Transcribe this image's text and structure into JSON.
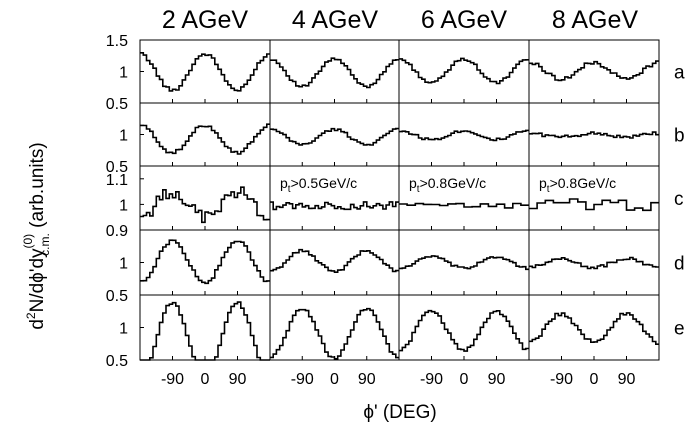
{
  "chart_data": {
    "type": "line",
    "layout": "grid of 5 rows x 4 columns, shared axes",
    "columns": [
      "2 AGeV",
      "4 AGeV",
      "6 AGeV",
      "8 AGeV"
    ],
    "rows": [
      "a",
      "b",
      "c",
      "d",
      "e"
    ],
    "xlabel": "ϕ' (DEG)",
    "ylabel": "d²N/dϕ'dy(0)c.m. (arb.units)",
    "xlim": [
      -180,
      180
    ],
    "xticks": [
      -90,
      0,
      90
    ],
    "xtick_labels": [
      "-90",
      "0",
      "90"
    ],
    "row_ylims": {
      "a": [
        0.5,
        1.5
      ],
      "b": [
        0.5,
        1.5
      ],
      "c": [
        0.9,
        1.15
      ],
      "d": [
        0.5,
        1.5
      ],
      "e": [
        0.5,
        1.5
      ]
    },
    "row_ytick_labels": {
      "a": [
        "1.5",
        "1",
        "0.5"
      ],
      "b": [
        "1",
        "0.5"
      ],
      "c": [
        "1.1",
        "1",
        "0.9"
      ],
      "d": [
        "1",
        "0.5"
      ],
      "e": [
        "1",
        "0.5"
      ]
    },
    "annotations": [
      {
        "row": "c",
        "column": "4 AGeV",
        "text": "pt>0.5GeV/c"
      },
      {
        "row": "c",
        "column": "6 AGeV",
        "text": "pt>0.8GeV/c"
      },
      {
        "row": "c",
        "column": "8 AGeV",
        "text": "pt>0.8GeV/c"
      }
    ],
    "series_form": "y = p0 + p2*cos(2*phi) (binned histograms)",
    "panels": [
      {
        "row": "a",
        "column": "2 AGeV",
        "p0": 0.99,
        "p2": 0.29,
        "noise": 0.025,
        "bins": 40
      },
      {
        "row": "a",
        "column": "4 AGeV",
        "p0": 0.98,
        "p2": 0.22,
        "noise": 0.02,
        "bins": 40
      },
      {
        "row": "a",
        "column": "6 AGeV",
        "p0": 1.01,
        "p2": 0.19,
        "noise": 0.02,
        "bins": 40
      },
      {
        "row": "a",
        "column": "8 AGeV",
        "p0": 1.01,
        "p2": 0.13,
        "noise": 0.03,
        "bins": 40
      },
      {
        "row": "b",
        "column": "2 AGeV",
        "p0": 0.93,
        "p2": 0.22,
        "noise": 0.025,
        "bins": 40
      },
      {
        "row": "b",
        "column": "4 AGeV",
        "p0": 0.96,
        "p2": 0.12,
        "noise": 0.02,
        "bins": 40
      },
      {
        "row": "b",
        "column": "6 AGeV",
        "p0": 0.99,
        "p2": 0.07,
        "noise": 0.02,
        "bins": 40
      },
      {
        "row": "b",
        "column": "8 AGeV",
        "p0": 0.99,
        "p2": 0.03,
        "noise": 0.025,
        "bins": 40
      },
      {
        "row": "c",
        "column": "2 AGeV",
        "p0": 1.0,
        "p2": -0.05,
        "noise": 0.025,
        "bins": 40
      },
      {
        "row": "c",
        "column": "4 AGeV",
        "p0": 0.995,
        "p2": 0.0,
        "noise": 0.015,
        "bins": 40
      },
      {
        "row": "c",
        "column": "6 AGeV",
        "p0": 0.995,
        "p2": 0.0,
        "noise": 0.01,
        "bins": 16
      },
      {
        "row": "c",
        "column": "8 AGeV",
        "p0": 1.0,
        "p2": 0.0,
        "noise": 0.025,
        "bins": 16
      },
      {
        "row": "d",
        "column": "2 AGeV",
        "p0": 1.01,
        "p2": -0.32,
        "noise": 0.025,
        "bins": 40
      },
      {
        "row": "d",
        "column": "4 AGeV",
        "p0": 1.02,
        "p2": -0.16,
        "noise": 0.02,
        "bins": 40
      },
      {
        "row": "d",
        "column": "6 AGeV",
        "p0": 1.0,
        "p2": -0.09,
        "noise": 0.02,
        "bins": 40
      },
      {
        "row": "d",
        "column": "8 AGeV",
        "p0": 0.99,
        "p2": -0.07,
        "noise": 0.025,
        "bins": 40
      },
      {
        "row": "e",
        "column": "2 AGeV",
        "p0": 0.8,
        "p2": -0.58,
        "noise": 0.02,
        "bins": 40
      },
      {
        "row": "e",
        "column": "4 AGeV",
        "p0": 0.91,
        "p2": -0.38,
        "noise": 0.02,
        "bins": 40
      },
      {
        "row": "e",
        "column": "6 AGeV",
        "p0": 0.95,
        "p2": -0.3,
        "noise": 0.025,
        "bins": 40
      },
      {
        "row": "e",
        "column": "8 AGeV",
        "p0": 0.99,
        "p2": -0.22,
        "noise": 0.03,
        "bins": 40
      }
    ],
    "line_color": "#000000",
    "grid": false,
    "legend": "none"
  }
}
